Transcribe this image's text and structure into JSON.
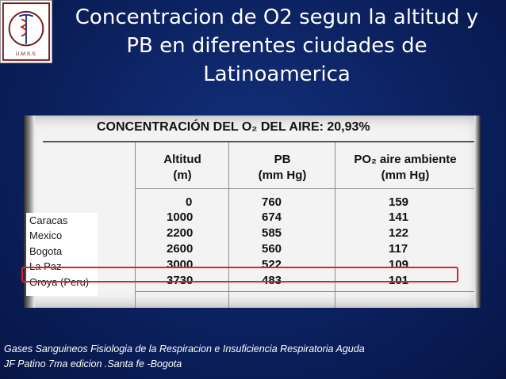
{
  "slide": {
    "title_lines": [
      "Concentracion de O2 segun la altitud y",
      "PB en diferentes ciudades de",
      "Latinoamerica"
    ],
    "logo": {
      "text_top": "FACULTAD DE MEDICINA",
      "text_bottom": "U.M.S.S.",
      "icon": "caduceus-seal-icon"
    },
    "table": {
      "title": "CONCENTRACIÓN DEL O₂ DEL AIRE: 20,93%",
      "headers": [
        {
          "line1": "Altitud",
          "line2": "(m)"
        },
        {
          "line1": "PB",
          "line2": "(mm Hg)"
        },
        {
          "line1": "PO₂ aire ambiente",
          "line2": "(mm Hg)"
        }
      ],
      "rows": [
        {
          "altitud": "0",
          "pb": "760",
          "po2": "159"
        },
        {
          "altitud": "1000",
          "pb": "674",
          "po2": "141"
        },
        {
          "altitud": "2200",
          "pb": "585",
          "po2": "122"
        },
        {
          "altitud": "2600",
          "pb": "560",
          "po2": "117"
        },
        {
          "altitud": "3000",
          "pb": "522",
          "po2": "109"
        },
        {
          "altitud": "3730",
          "pb": "483",
          "po2": "101"
        }
      ],
      "cities": [
        "Caracas",
        "Mexico",
        "Bogota",
        "La Paz",
        "Oroya (Peru)"
      ],
      "highlight_color": "#e0202a"
    },
    "reference_lines": [
      "Gases Sanguineos Fisiologia de la Respiracion e Insuficiencia Respiratoria Aguda",
      "JF Patino 7ma edicion .Santa fe -Bogota"
    ]
  }
}
